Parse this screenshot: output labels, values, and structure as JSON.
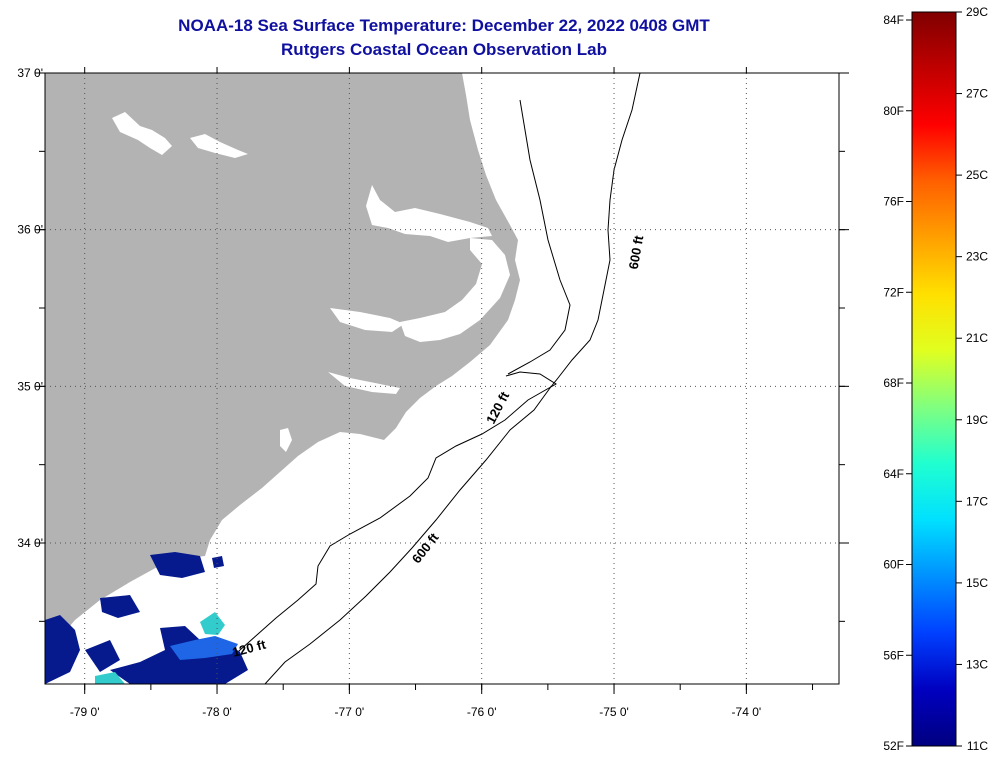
{
  "header": {
    "title": "NOAA-18 Sea Surface Temperature:  December 22, 2022 0408 GMT",
    "subtitle": "Rutgers Coastal Ocean Observation Lab"
  },
  "map": {
    "lon_range": [
      -79.3,
      -73.3
    ],
    "lat_range": [
      33.1,
      37.0
    ],
    "lon_ticks": [
      {
        "value": -79,
        "label": "-79 0'"
      },
      {
        "value": -78,
        "label": "-78 0'"
      },
      {
        "value": -77,
        "label": "-77 0'"
      },
      {
        "value": -76,
        "label": "-76 0'"
      },
      {
        "value": -75,
        "label": "-75 0'"
      },
      {
        "value": -74,
        "label": "-74 0'"
      }
    ],
    "lat_ticks": [
      {
        "value": 37,
        "label": "37 0'"
      },
      {
        "value": 36,
        "label": "36 0'"
      },
      {
        "value": 35,
        "label": "35 0'"
      },
      {
        "value": 34,
        "label": "34 0'"
      }
    ],
    "grid": "dotted",
    "contour_labels": [
      {
        "text": "600 ft",
        "lon": -74.8,
        "lat": 35.85
      },
      {
        "text": "120 ft",
        "lon": -75.85,
        "lat": 34.85
      },
      {
        "text": "600 ft",
        "lon": -76.4,
        "lat": 33.95
      },
      {
        "text": "120 ft",
        "lon": -77.75,
        "lat": 33.3
      }
    ],
    "colors": {
      "land": "#b3b3b3",
      "water": "#ffffff",
      "cold_patch": "#061a8e",
      "mid_patch": "#1e66e6",
      "warm_patch": "#33cccc"
    }
  },
  "colorbar": {
    "fahrenheit_labels": [
      "84F",
      "80F",
      "76F",
      "72F",
      "68F",
      "64F",
      "60F",
      "56F",
      "52F"
    ],
    "celsius_labels": [
      "29C",
      "27C",
      "25C",
      "23C",
      "21C",
      "19C",
      "17C",
      "15C",
      "13C",
      "11C"
    ],
    "stops": [
      "#800000",
      "#c00000",
      "#ff0000",
      "#ff6000",
      "#ffa000",
      "#ffe000",
      "#e0ff20",
      "#80ff80",
      "#20ffd0",
      "#00e0ff",
      "#0090ff",
      "#0040ff",
      "#0000c0",
      "#000080"
    ]
  }
}
